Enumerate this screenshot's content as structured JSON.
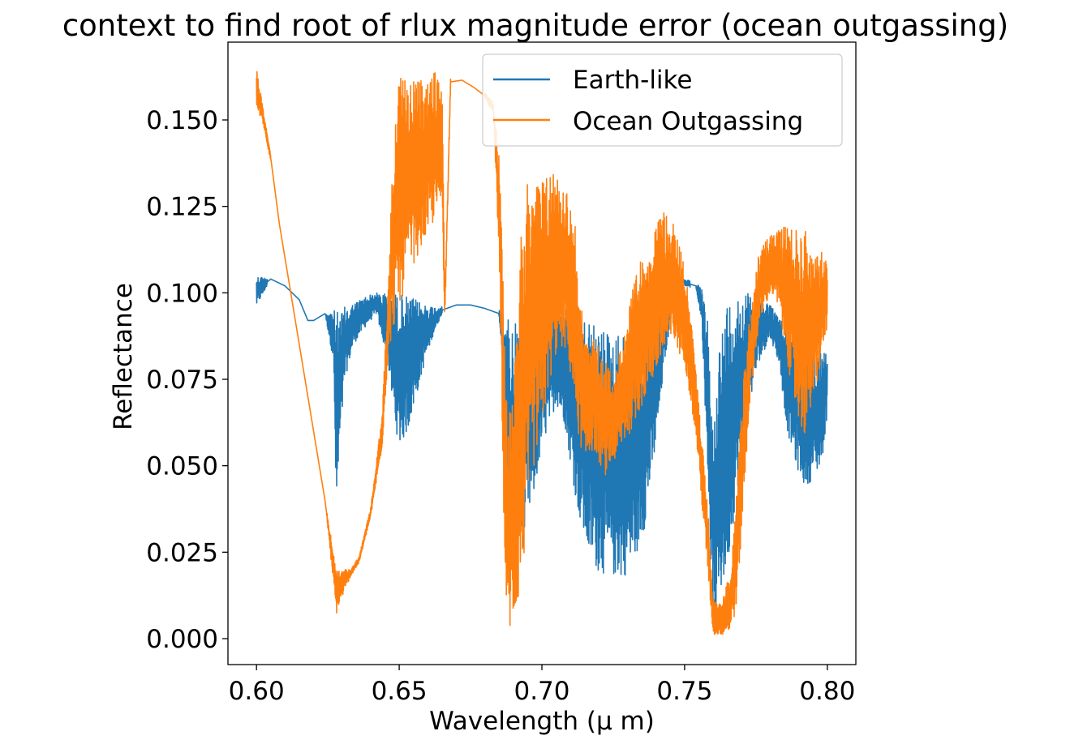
{
  "chart_data": {
    "type": "line",
    "title": "context to find root of rlux magnitude error (ocean outgassing)",
    "xlabel": "Wavelength (μ m)",
    "ylabel": "Reflectance",
    "xlim": [
      0.59,
      0.81
    ],
    "ylim": [
      -0.0075,
      0.1725
    ],
    "xticks": [
      0.6,
      0.65,
      0.7,
      0.75,
      0.8
    ],
    "xtick_labels": [
      "0.60",
      "0.65",
      "0.70",
      "0.75",
      "0.80"
    ],
    "yticks": [
      0.0,
      0.025,
      0.05,
      0.075,
      0.1,
      0.125,
      0.15
    ],
    "ytick_labels": [
      "0.000",
      "0.025",
      "0.050",
      "0.075",
      "0.100",
      "0.125",
      "0.150"
    ],
    "grid": false,
    "legend_position": "upper right",
    "series": [
      {
        "name": "Earth-like",
        "color": "#1f77b4",
        "envelope": {
          "x": [
            0.6,
            0.605,
            0.61,
            0.615,
            0.618,
            0.62,
            0.624,
            0.627,
            0.628,
            0.629,
            0.631,
            0.634,
            0.638,
            0.642,
            0.646,
            0.648,
            0.65,
            0.653,
            0.656,
            0.659,
            0.662,
            0.665,
            0.67,
            0.675,
            0.68,
            0.685,
            0.687,
            0.688,
            0.69,
            0.693,
            0.697,
            0.7,
            0.705,
            0.708,
            0.711,
            0.713,
            0.716,
            0.72,
            0.724,
            0.728,
            0.732,
            0.736,
            0.74,
            0.743,
            0.746,
            0.75,
            0.754,
            0.756,
            0.758,
            0.76,
            0.762,
            0.765,
            0.768,
            0.772,
            0.776,
            0.78,
            0.783,
            0.786,
            0.789,
            0.792,
            0.795,
            0.798,
            0.8
          ],
          "upper": [
            0.105,
            0.104,
            0.102,
            0.098,
            0.092,
            0.092,
            0.094,
            0.095,
            0.095,
            0.094,
            0.096,
            0.097,
            0.099,
            0.1,
            0.1,
            0.1,
            0.1,
            0.099,
            0.098,
            0.097,
            0.096,
            0.096,
            0.097,
            0.097,
            0.096,
            0.095,
            0.094,
            0.093,
            0.091,
            0.093,
            0.094,
            0.095,
            0.096,
            0.096,
            0.095,
            0.093,
            0.092,
            0.09,
            0.089,
            0.088,
            0.09,
            0.092,
            0.095,
            0.099,
            0.103,
            0.104,
            0.103,
            0.101,
            0.092,
            0.06,
            0.085,
            0.098,
            0.1,
            0.1,
            0.099,
            0.097,
            0.093,
            0.09,
            0.088,
            0.087,
            0.086,
            0.084,
            0.083
          ],
          "lower": [
            0.096,
            0.104,
            0.102,
            0.098,
            0.092,
            0.092,
            0.094,
            0.08,
            0.031,
            0.052,
            0.075,
            0.085,
            0.09,
            0.094,
            0.08,
            0.065,
            0.055,
            0.06,
            0.07,
            0.08,
            0.088,
            0.094,
            0.096,
            0.096,
            0.095,
            0.093,
            0.07,
            0.02,
            0.022,
            0.025,
            0.04,
            0.055,
            0.068,
            0.062,
            0.045,
            0.035,
            0.024,
            0.019,
            0.018,
            0.017,
            0.021,
            0.032,
            0.055,
            0.08,
            0.097,
            0.102,
            0.101,
            0.092,
            0.05,
            0.003,
            0.01,
            0.02,
            0.04,
            0.065,
            0.08,
            0.087,
            0.08,
            0.06,
            0.05,
            0.044,
            0.046,
            0.05,
            0.065
          ]
        }
      },
      {
        "name": "Ocean Outgassing",
        "color": "#ff7f0e",
        "envelope": {
          "x": [
            0.6,
            0.602,
            0.605,
            0.608,
            0.612,
            0.616,
            0.62,
            0.624,
            0.628,
            0.63,
            0.633,
            0.636,
            0.64,
            0.644,
            0.646,
            0.648,
            0.65,
            0.653,
            0.656,
            0.659,
            0.662,
            0.665,
            0.666,
            0.668,
            0.672,
            0.676,
            0.68,
            0.683,
            0.685,
            0.687,
            0.688,
            0.69,
            0.693,
            0.696,
            0.7,
            0.703,
            0.706,
            0.709,
            0.712,
            0.715,
            0.718,
            0.722,
            0.726,
            0.73,
            0.734,
            0.738,
            0.742,
            0.746,
            0.75,
            0.754,
            0.758,
            0.76,
            0.763,
            0.766,
            0.768,
            0.77,
            0.773,
            0.776,
            0.78,
            0.783,
            0.786,
            0.789,
            0.792,
            0.795,
            0.798,
            0.8
          ],
          "upper": [
            0.165,
            0.155,
            0.14,
            0.12,
            0.1,
            0.08,
            0.06,
            0.04,
            0.02,
            0.02,
            0.02,
            0.024,
            0.038,
            0.065,
            0.1,
            0.145,
            0.164,
            0.16,
            0.163,
            0.16,
            0.164,
            0.163,
            0.1,
            0.162,
            0.162,
            0.16,
            0.158,
            0.155,
            0.14,
            0.09,
            0.06,
            0.08,
            0.125,
            0.135,
            0.133,
            0.137,
            0.134,
            0.13,
            0.118,
            0.085,
            0.088,
            0.08,
            0.078,
            0.095,
            0.108,
            0.115,
            0.124,
            0.12,
            0.11,
            0.078,
            0.04,
            0.012,
            0.01,
            0.02,
            0.04,
            0.07,
            0.095,
            0.112,
            0.117,
            0.119,
            0.12,
            0.118,
            0.12,
            0.11,
            0.112,
            0.109
          ],
          "lower": [
            0.153,
            0.15,
            0.138,
            0.12,
            0.1,
            0.08,
            0.06,
            0.04,
            0.007,
            0.012,
            0.018,
            0.022,
            0.035,
            0.055,
            0.08,
            0.09,
            0.095,
            0.105,
            0.11,
            0.115,
            0.12,
            0.125,
            0.091,
            0.16,
            0.161,
            0.159,
            0.156,
            0.152,
            0.11,
            0.02,
            0.001,
            0.003,
            0.015,
            0.045,
            0.06,
            0.075,
            0.085,
            0.082,
            0.062,
            0.05,
            0.055,
            0.047,
            0.052,
            0.058,
            0.065,
            0.073,
            0.08,
            0.085,
            0.08,
            0.058,
            0.02,
            0.001,
            0.001,
            0.002,
            0.008,
            0.03,
            0.07,
            0.09,
            0.1,
            0.095,
            0.08,
            0.065,
            0.058,
            0.068,
            0.08,
            0.09
          ]
        }
      }
    ]
  }
}
